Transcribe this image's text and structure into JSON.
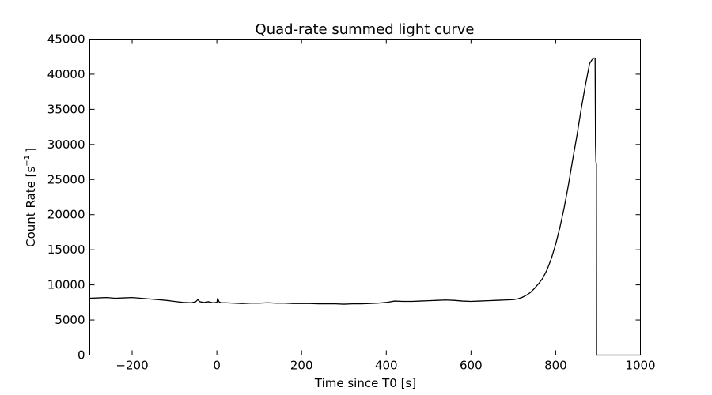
{
  "chart_data": {
    "type": "line",
    "title": "Quad-rate summed light curve",
    "xlabel": "Time since T0 [s]",
    "ylabel_main": "Count Rate [s",
    "ylabel_sup": "−1",
    "ylabel_end": "]",
    "xlim": [
      -300,
      1000
    ],
    "ylim": [
      0,
      45000
    ],
    "xticks": [
      -200,
      0,
      200,
      400,
      600,
      800,
      1000
    ],
    "xtick_labels": [
      "−200",
      "0",
      "200",
      "400",
      "600",
      "800",
      "1000"
    ],
    "yticks": [
      0,
      5000,
      10000,
      15000,
      20000,
      25000,
      30000,
      35000,
      40000,
      45000
    ],
    "ytick_labels": [
      "0",
      "5000",
      "10000",
      "15000",
      "20000",
      "25000",
      "30000",
      "35000",
      "40000",
      "45000"
    ],
    "grid": false,
    "series": [
      {
        "color": "#000000",
        "x": [
          -300,
          -280,
          -260,
          -240,
          -220,
          -200,
          -180,
          -160,
          -140,
          -120,
          -100,
          -80,
          -60,
          -50,
          -45,
          -40,
          -30,
          -20,
          -10,
          0,
          2,
          5,
          10,
          20,
          40,
          60,
          80,
          100,
          120,
          140,
          160,
          180,
          200,
          220,
          240,
          260,
          280,
          300,
          320,
          340,
          360,
          380,
          400,
          420,
          440,
          460,
          480,
          500,
          520,
          540,
          560,
          580,
          600,
          620,
          640,
          660,
          680,
          700,
          710,
          720,
          730,
          740,
          750,
          760,
          770,
          780,
          790,
          800,
          810,
          820,
          830,
          840,
          850,
          860,
          870,
          880,
          885,
          890,
          893,
          894,
          895,
          896,
          896.5,
          897,
          898,
          1000
        ],
        "y": [
          8100,
          8150,
          8200,
          8100,
          8150,
          8200,
          8100,
          8000,
          7900,
          7800,
          7650,
          7500,
          7450,
          7600,
          7900,
          7600,
          7500,
          7600,
          7450,
          7500,
          8100,
          7600,
          7450,
          7450,
          7400,
          7350,
          7400,
          7400,
          7450,
          7400,
          7400,
          7350,
          7350,
          7350,
          7300,
          7300,
          7300,
          7250,
          7300,
          7300,
          7350,
          7400,
          7500,
          7700,
          7650,
          7650,
          7700,
          7750,
          7800,
          7850,
          7800,
          7700,
          7650,
          7700,
          7750,
          7800,
          7850,
          7900,
          8000,
          8200,
          8500,
          8900,
          9500,
          10200,
          11000,
          12200,
          13800,
          15800,
          18200,
          21000,
          24200,
          27800,
          31200,
          35000,
          38400,
          41500,
          42000,
          42300,
          42300,
          30000,
          27500,
          27300,
          0,
          0,
          0,
          0
        ]
      }
    ]
  }
}
